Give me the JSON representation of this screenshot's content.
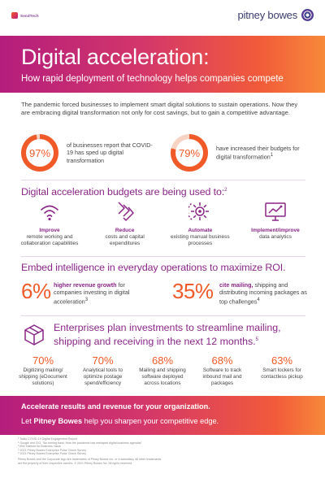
{
  "header": {
    "sub_brand": "SendTech",
    "brand": "pitney bowes"
  },
  "hero": {
    "title": "Digital acceleration:",
    "subtitle": "How rapid deployment of technology helps companies compete"
  },
  "intro": "The pandemic forced businesses to implement smart digital solutions to sustain operations. Now they are embracing digital transformation not only for cost savings, but to gain a competitive advantage.",
  "stats": [
    {
      "value": "97%",
      "level": 0.97,
      "description": "of businesses report that COVID-19 has sped up digital transformation",
      "note": ""
    },
    {
      "value": "79%",
      "level": 0.79,
      "description": "have increased their budgets for digital transformation",
      "note": "1"
    }
  ],
  "budgets": {
    "heading": "Digital acceleration budgets are being used to:",
    "note": "2",
    "items": [
      {
        "icon": "wifi-icon",
        "title": "Improve",
        "description": "remote working and collaboration capabilities"
      },
      {
        "icon": "downward-arrows-icon",
        "title": "Reduce",
        "description": "costs and capital expenditures"
      },
      {
        "icon": "automation-gear-icon",
        "title": "Automate",
        "description": "existing manual business processes"
      },
      {
        "icon": "analytics-monitor-icon",
        "title": "Implement/improve",
        "description": "data analytics"
      }
    ]
  },
  "intelligence": {
    "heading": "Embed intelligence in everyday operations to maximize ROI.",
    "left": {
      "value": "6%",
      "bold": "higher revenue growth",
      "rest": " for companies investing in digital acceleration",
      "note": "3"
    },
    "right": {
      "value": "35%",
      "bold": "cite mailing,",
      "rest": " shipping and distributing incoming packages as top challenges",
      "note": "4"
    }
  },
  "plans": {
    "heading": "Enterprises plan investments to streamline mailing, shipping and receiving in the next 12 months.",
    "note": "5",
    "items": [
      {
        "value": "70%",
        "description": "Digitizing mailing/ shipping (eDocument solutions)"
      },
      {
        "value": "70%",
        "description": "Analytical tools to optimize postage spend/efficiency"
      },
      {
        "value": "68%",
        "description": "Mailing and shipping software deployed across locations"
      },
      {
        "value": "68%",
        "description": "Software to track inbound mail and packages"
      },
      {
        "value": "63%",
        "description": "Smart lockers for contactless pickup"
      }
    ]
  },
  "cta": {
    "line1": "Accelerate results and revenue for your organization.",
    "line2_pre": "Let ",
    "line2_brand": "Pitney Bowes",
    "line2_post": " help you sharpen your competitive edge."
  },
  "footnotes": [
    "¹ Twilio COVID-19 Digital Engagement Report",
    "² Google and CIO, \"No turning back: How the pandemic has reshaped digital business agendas\"",
    "³ IBM Institute for Business Value",
    "⁴ 2021 Pitney Bowes Enterprise Pulse Check Survey",
    "⁵ 2021 Pitney Bowes Enterprise Pulse Check Survey"
  ],
  "legal": [
    "Pitney Bowes and the Corporate logo are trademarks of Pitney Bowes Inc. or a subsidiary. All other trademarks",
    "are the property of their respective owners. © 2021 Pitney Bowes Inc. All rights reserved."
  ],
  "colors": {
    "accent_orange": "#f05a28",
    "accent_purple": "#8a2687",
    "gradient_start": "#b41d7d",
    "gradient_end": "#f7893a"
  }
}
